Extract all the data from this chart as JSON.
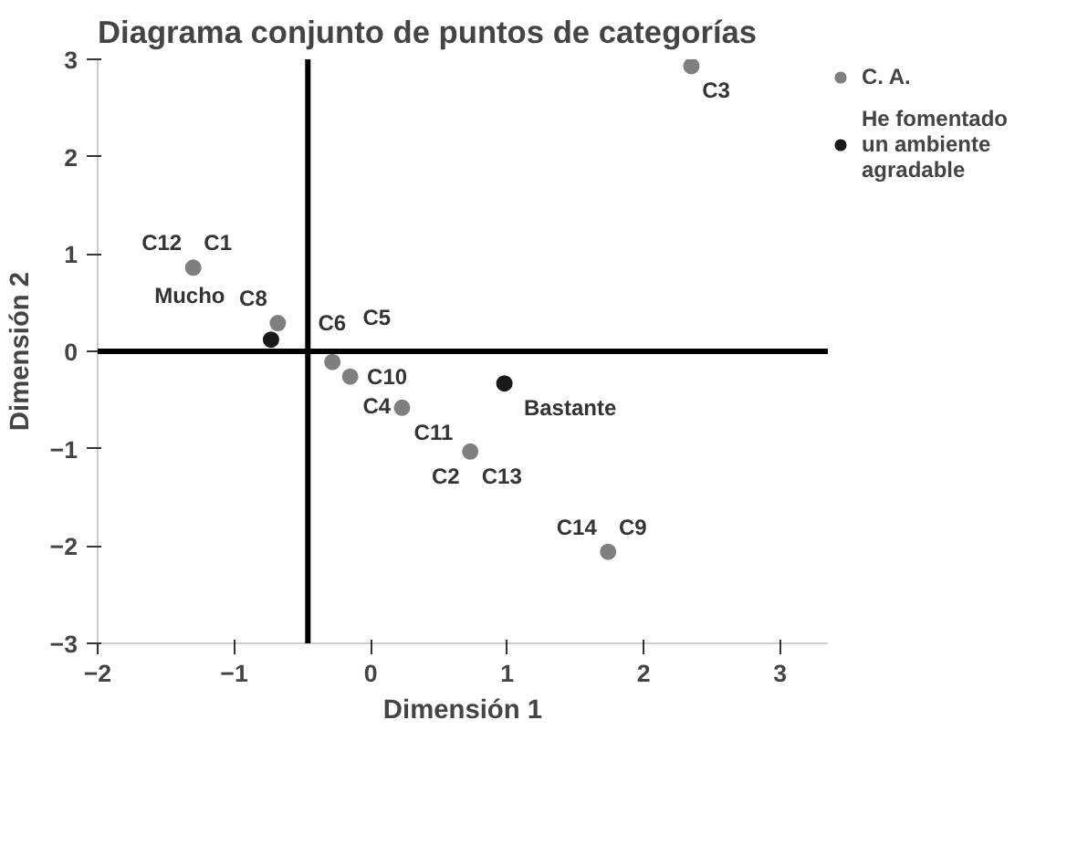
{
  "chart_data": {
    "type": "scatter",
    "title": "Diagrama conjunto de puntos de categorías",
    "xlabel": "Dimensión 1",
    "ylabel": "Dimensión 2",
    "series": [
      {
        "name": "C. A.",
        "color": "#7f7f7f",
        "x": [
          -1.3,
          -0.68,
          -0.28,
          -0.15,
          0.23,
          0.73,
          1.74,
          2.35
        ],
        "values": [
          0.86,
          0.29,
          -0.11,
          -0.26,
          -0.58,
          -1.03,
          -2.06,
          2.93
        ]
      },
      {
        "name": "He fomentado un ambiente agradable",
        "color": "#1a1a1a",
        "x": [
          -0.73,
          0.98
        ],
        "values": [
          0.12,
          -0.33
        ]
      }
    ],
    "annotations": [
      {
        "text": "C12",
        "x": -1.3,
        "y": 0.86
      },
      {
        "text": "C1",
        "x": -1.3,
        "y": 0.86
      },
      {
        "text": "C8",
        "x": -0.68,
        "y": 0.29
      },
      {
        "text": "C6",
        "x": -0.68,
        "y": 0.29
      },
      {
        "text": "Mucho",
        "x": -0.73,
        "y": 0.12
      },
      {
        "text": "C5",
        "x": -0.28,
        "y": -0.11
      },
      {
        "text": "C4",
        "x": -0.28,
        "y": -0.11
      },
      {
        "text": "C10",
        "x": -0.15,
        "y": -0.26
      },
      {
        "text": "C11",
        "x": 0.23,
        "y": -0.58
      },
      {
        "text": "Bastante",
        "x": 0.98,
        "y": -0.33
      },
      {
        "text": "C13",
        "x": 0.73,
        "y": -1.03
      },
      {
        "text": "C2",
        "x": 0.73,
        "y": -1.03
      },
      {
        "text": "C14",
        "x": 1.74,
        "y": -2.06
      },
      {
        "text": "C9",
        "x": 1.74,
        "y": -2.06
      },
      {
        "text": "C3",
        "x": 2.35,
        "y": 2.93
      }
    ],
    "ref_lines": [
      {
        "axis": "x",
        "value": -0.46,
        "color": "#000000"
      },
      {
        "axis": "y",
        "value": 0,
        "color": "#000000"
      }
    ],
    "xlim": [
      -2,
      3.35
    ],
    "ylim": [
      -3,
      3
    ],
    "xticks": [
      -2,
      -1,
      0,
      1,
      2,
      3
    ],
    "yticks": [
      -3,
      -2,
      -1,
      0,
      1,
      2,
      3
    ],
    "legend": "right",
    "marker": "circle"
  }
}
